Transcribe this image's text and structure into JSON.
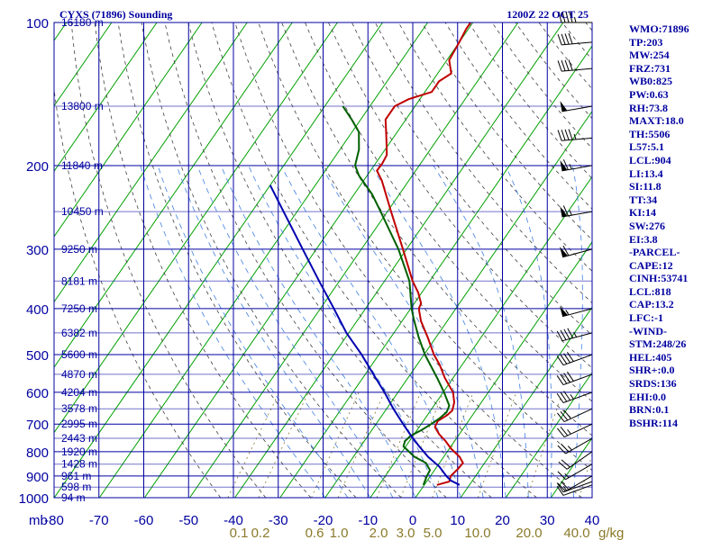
{
  "header": {
    "station": "CYXS (71896) Sounding",
    "valid_time": "1200Z 22 OCT 25"
  },
  "chart_data": {
    "type": "line",
    "title": "CYXS (71896) Sounding",
    "subtitle": "1200Z 22 OCT 25",
    "xlabel": "",
    "ylabel": "mb",
    "y_scale": "log",
    "xlim": [
      -80,
      40
    ],
    "ylim": [
      1000,
      100
    ],
    "pressure_ticks": [
      100,
      200,
      300,
      400,
      500,
      600,
      700,
      800,
      900,
      1000
    ],
    "temperature_ticks": [
      -80,
      -70,
      -60,
      -50,
      -40,
      -30,
      -20,
      -10,
      0,
      10,
      20,
      30,
      40
    ],
    "mixing_ratio_ticks": [
      "0.1",
      "0.2",
      "0.6",
      "1.0",
      "2.0",
      "3.0",
      "5.0",
      "10.0",
      "20.0",
      "40.0"
    ],
    "mixing_ratio_unit": "g/kg",
    "mixing_ratio_values": [
      0.1,
      0.2,
      0.6,
      1.0,
      2.0,
      3.0,
      5.0,
      10.0,
      20.0,
      40.0
    ],
    "height_labels": [
      {
        "p": 100,
        "label": "16180 m"
      },
      {
        "p": 150,
        "label": "13800 m"
      },
      {
        "p": 200,
        "label": "11840 m"
      },
      {
        "p": 250,
        "label": "10450 m"
      },
      {
        "p": 300,
        "label": "9250 m"
      },
      {
        "p": 350,
        "label": "8181 m"
      },
      {
        "p": 400,
        "label": "7250 m"
      },
      {
        "p": 450,
        "label": "6382 m"
      },
      {
        "p": 500,
        "label": "5600 m"
      },
      {
        "p": 550,
        "label": "4870 m"
      },
      {
        "p": 600,
        "label": "4204 m"
      },
      {
        "p": 650,
        "label": "3578 m"
      },
      {
        "p": 700,
        "label": "2995 m"
      },
      {
        "p": 750,
        "label": "2443 m"
      },
      {
        "p": 800,
        "label": "1920 m"
      },
      {
        "p": 850,
        "label": "1428 m"
      },
      {
        "p": 900,
        "label": "961 m"
      },
      {
        "p": 950,
        "label": "598 m"
      },
      {
        "p": 1000,
        "label": "94 m"
      }
    ],
    "series": [
      {
        "role": "temperature",
        "color": "#c00000",
        "points": [
          [
            940,
            2.8
          ],
          [
            925,
            5.0
          ],
          [
            900,
            4.5
          ],
          [
            870,
            5.0
          ],
          [
            845,
            5.2
          ],
          [
            820,
            3.5
          ],
          [
            790,
            0.5
          ],
          [
            760,
            -2.0
          ],
          [
            735,
            -4.5
          ],
          [
            710,
            -6.5
          ],
          [
            690,
            -6.8
          ],
          [
            670,
            -5.6
          ],
          [
            655,
            -5.2
          ],
          [
            630,
            -6.0
          ],
          [
            600,
            -7.8
          ],
          [
            560,
            -11.8
          ],
          [
            525,
            -15.0
          ],
          [
            500,
            -17.8
          ],
          [
            460,
            -21.8
          ],
          [
            425,
            -25.8
          ],
          [
            400,
            -28.2
          ],
          [
            390,
            -28.5
          ],
          [
            370,
            -30.8
          ],
          [
            350,
            -33.8
          ],
          [
            300,
            -40.8
          ],
          [
            250,
            -49.2
          ],
          [
            215,
            -56.0
          ],
          [
            205,
            -58.6
          ],
          [
            198,
            -58.5
          ],
          [
            190,
            -58.8
          ],
          [
            175,
            -61.5
          ],
          [
            160,
            -64.5
          ],
          [
            150,
            -64.5
          ],
          [
            145,
            -62.5
          ],
          [
            140,
            -58.5
          ],
          [
            133,
            -58.5
          ],
          [
            128,
            -57.0
          ],
          [
            120,
            -59.5
          ],
          [
            110,
            -60.0
          ],
          [
            103,
            -60.5
          ],
          [
            100,
            -60.5
          ]
        ]
      },
      {
        "role": "dewpoint",
        "color": "#006000",
        "points": [
          [
            940,
            -0.2
          ],
          [
            920,
            -0.5
          ],
          [
            900,
            -0.8
          ],
          [
            875,
            -1.0
          ],
          [
            845,
            -3.0
          ],
          [
            820,
            -6.5
          ],
          [
            780,
            -10.5
          ],
          [
            760,
            -11.0
          ],
          [
            740,
            -10.5
          ],
          [
            720,
            -9.0
          ],
          [
            700,
            -7.8
          ],
          [
            680,
            -6.8
          ],
          [
            660,
            -6.2
          ],
          [
            640,
            -6.6
          ],
          [
            600,
            -9.8
          ],
          [
            560,
            -13.5
          ],
          [
            500,
            -19.8
          ],
          [
            460,
            -23.8
          ],
          [
            420,
            -27.8
          ],
          [
            400,
            -29.8
          ],
          [
            350,
            -34.5
          ],
          [
            300,
            -41.8
          ],
          [
            250,
            -51.5
          ],
          [
            230,
            -56.0
          ],
          [
            210,
            -61.8
          ],
          [
            200,
            -64.2
          ],
          [
            185,
            -65.8
          ],
          [
            170,
            -68.5
          ],
          [
            160,
            -72.0
          ],
          [
            150,
            -76.0
          ]
        ]
      },
      {
        "role": "parcel",
        "color": "#0000b0",
        "points": [
          [
            940,
            7.8
          ],
          [
            920,
            5.2
          ],
          [
            900,
            3.5
          ],
          [
            860,
            0.5
          ],
          [
            820,
            -3.5
          ],
          [
            780,
            -7.0
          ],
          [
            740,
            -10.5
          ],
          [
            700,
            -14.0
          ],
          [
            650,
            -18.5
          ],
          [
            600,
            -23.0
          ],
          [
            550,
            -28.2
          ],
          [
            500,
            -33.8
          ],
          [
            450,
            -40.5
          ],
          [
            400,
            -47.0
          ],
          [
            350,
            -54.5
          ],
          [
            300,
            -63.0
          ],
          [
            250,
            -73.0
          ],
          [
            220,
            -80.0
          ]
        ]
      }
    ],
    "wind_barbs": [
      {
        "p": 940,
        "dir": 250,
        "spd": 10
      },
      {
        "p": 925,
        "dir": 250,
        "spd": 15
      },
      {
        "p": 900,
        "dir": 240,
        "spd": 20
      },
      {
        "p": 850,
        "dir": 240,
        "spd": 15
      },
      {
        "p": 800,
        "dir": 235,
        "spd": 20
      },
      {
        "p": 750,
        "dir": 240,
        "spd": 25
      },
      {
        "p": 700,
        "dir": 245,
        "spd": 25
      },
      {
        "p": 650,
        "dir": 245,
        "spd": 30
      },
      {
        "p": 600,
        "dir": 250,
        "spd": 35
      },
      {
        "p": 550,
        "dir": 250,
        "spd": 40
      },
      {
        "p": 500,
        "dir": 250,
        "spd": 40
      },
      {
        "p": 450,
        "dir": 255,
        "spd": 45
      },
      {
        "p": 400,
        "dir": 255,
        "spd": 55
      },
      {
        "p": 300,
        "dir": 255,
        "spd": 60
      },
      {
        "p": 250,
        "dir": 260,
        "spd": 65
      },
      {
        "p": 200,
        "dir": 260,
        "spd": 65
      },
      {
        "p": 175,
        "dir": 265,
        "spd": 45
      },
      {
        "p": 150,
        "dir": 260,
        "spd": 50
      },
      {
        "p": 125,
        "dir": 265,
        "spd": 40
      },
      {
        "p": 110,
        "dir": 265,
        "spd": 40
      },
      {
        "p": 100,
        "dir": 270,
        "spd": 45
      }
    ]
  },
  "indices": [
    "WMO:71896",
    "TP:203",
    "MW:254",
    "FRZ:731",
    "WB0:825",
    "PW:0.63",
    "RH:73.8",
    "MAXT:18.0",
    "TH:5506",
    "L57:5.1",
    "LCL:904",
    "LI:13.4",
    "SI:11.8",
    "TT:34",
    "KI:14",
    "SW:276",
    "EI:3.8",
    "-PARCEL-",
    "CAPE:12",
    "CINH:53741",
    "LCL:818",
    "CAP:13.2",
    "LFC:-1",
    "-WIND-",
    "STM:248/26",
    "HEL:405",
    "SHR+:0.0",
    "SRDS:136",
    "EHI:0.0",
    "BRN:0.1",
    "BSHR:114"
  ],
  "colors": {
    "frame": "#0000a0",
    "isotherm": "#00a000",
    "dry_adiabat": "#404040",
    "moist_adiabat": "#4080e0",
    "mixing_ratio": "#8a7a2a"
  }
}
